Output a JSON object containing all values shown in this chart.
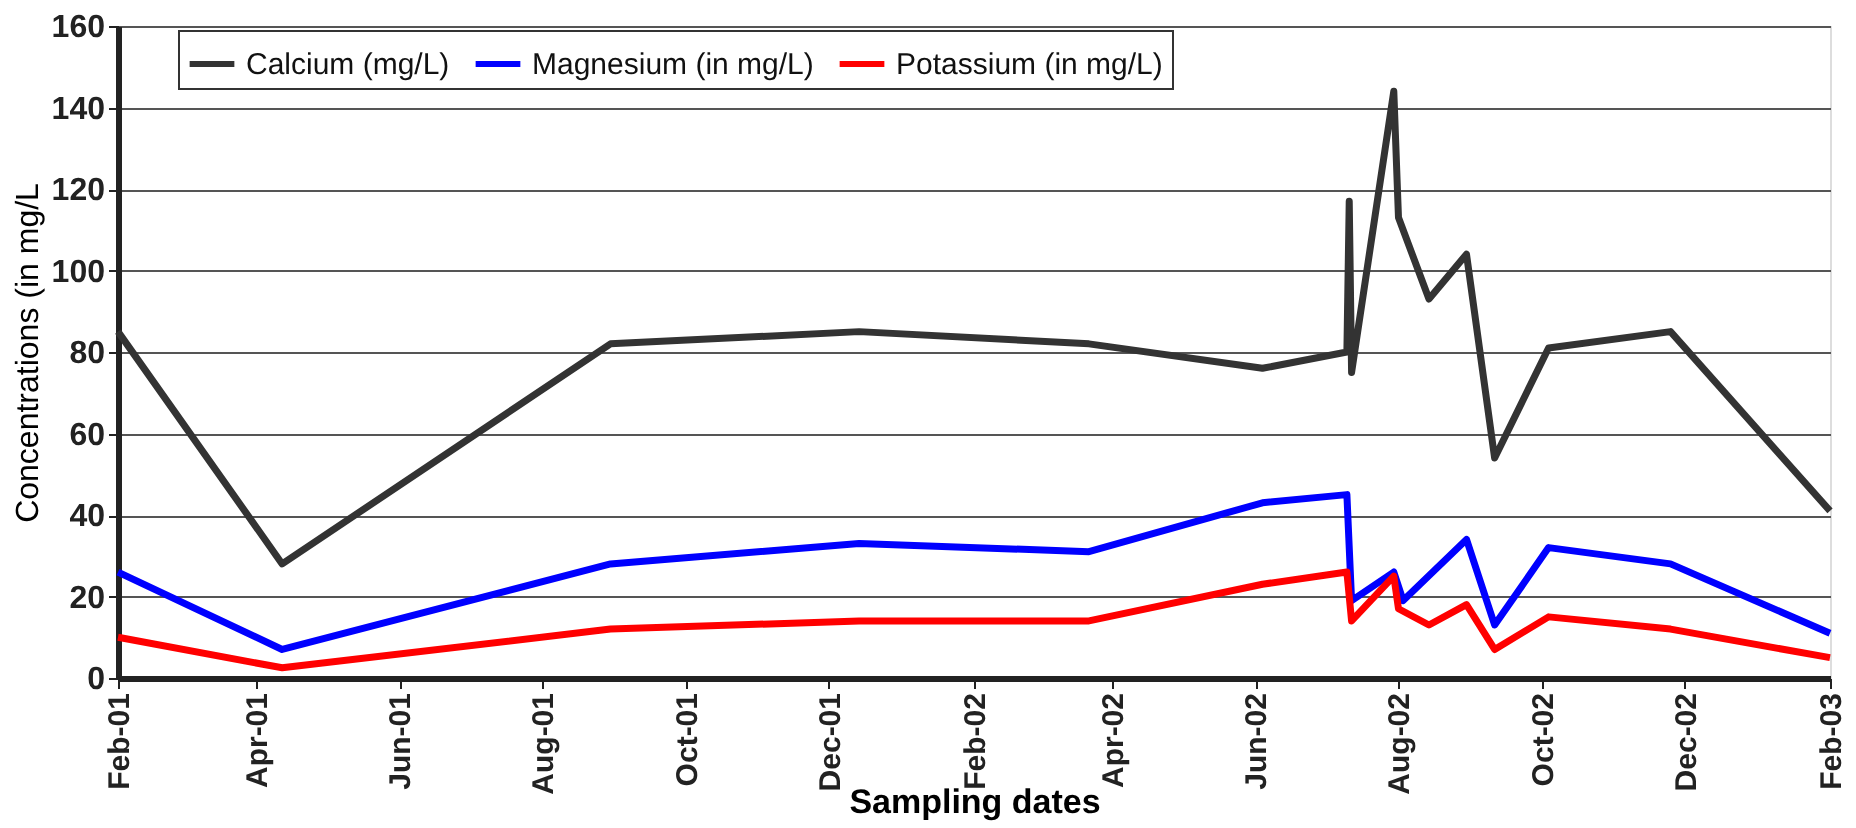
{
  "chart_data": {
    "type": "line",
    "xlabel": "Sampling dates",
    "ylabel": "Concentrations (in mg/L",
    "xlim": [
      "2001-02-01",
      "2003-02-01"
    ],
    "xticks": [
      {
        "value": "2001-02-01",
        "label": "Feb-01"
      },
      {
        "value": "2001-04-01",
        "label": "Apr-01"
      },
      {
        "value": "2001-06-01",
        "label": "Jun-01"
      },
      {
        "value": "2001-08-01",
        "label": "Aug-01"
      },
      {
        "value": "2001-10-01",
        "label": "Oct-01"
      },
      {
        "value": "2001-12-01",
        "label": "Dec-01"
      },
      {
        "value": "2002-02-01",
        "label": "Feb-02"
      },
      {
        "value": "2002-04-01",
        "label": "Apr-02"
      },
      {
        "value": "2002-06-01",
        "label": "Jun-02"
      },
      {
        "value": "2002-08-01",
        "label": "Aug-02"
      },
      {
        "value": "2002-10-01",
        "label": "Oct-02"
      },
      {
        "value": "2002-12-01",
        "label": "Dec-02"
      },
      {
        "value": "2003-02-01",
        "label": "Feb-03"
      }
    ],
    "ylim": [
      0,
      160
    ],
    "yticks": [
      0,
      20,
      40,
      60,
      80,
      100,
      120,
      140,
      160
    ],
    "grid": "y",
    "legend": "top",
    "marker": "none",
    "line_style": "solid",
    "series": [
      {
        "name": "Calcium (mg/L)",
        "color": "#333333",
        "x": [
          "2001-02-01",
          "2001-04-12",
          "2001-08-30",
          "2001-12-14",
          "2002-03-22",
          "2002-06-04",
          "2002-07-10",
          "2002-07-11",
          "2002-07-12",
          "2002-07-30",
          "2002-08-01",
          "2002-08-14",
          "2002-08-30",
          "2002-09-11",
          "2002-10-04",
          "2002-11-25",
          "2003-02-01"
        ],
        "values": [
          85,
          28,
          82,
          85,
          82,
          76,
          80,
          117,
          75,
          144,
          113,
          93,
          104,
          54,
          81,
          85,
          41
        ]
      },
      {
        "name": "Magnesium (in mg/L)",
        "color": "#0000ff",
        "x": [
          "2001-02-01",
          "2001-04-12",
          "2001-08-30",
          "2001-12-14",
          "2002-03-22",
          "2002-06-04",
          "2002-07-10",
          "2002-07-12",
          "2002-07-30",
          "2002-08-03",
          "2002-08-30",
          "2002-09-11",
          "2002-10-04",
          "2002-11-25",
          "2003-02-01"
        ],
        "values": [
          26,
          7,
          28,
          33,
          31,
          43,
          45,
          19,
          26,
          19,
          34,
          13,
          32,
          28,
          11
        ]
      },
      {
        "name": "Potassium (in mg/L)",
        "color": "#ff0000",
        "x": [
          "2001-02-01",
          "2001-04-12",
          "2001-08-30",
          "2001-12-14",
          "2002-03-22",
          "2002-06-04",
          "2002-07-10",
          "2002-07-12",
          "2002-07-30",
          "2002-08-01",
          "2002-08-14",
          "2002-08-30",
          "2002-09-11",
          "2002-10-04",
          "2002-11-25",
          "2003-02-01"
        ],
        "values": [
          10,
          2.5,
          12,
          14,
          14,
          23,
          26,
          14,
          25,
          17,
          13,
          18,
          7,
          15,
          12,
          5
        ]
      }
    ]
  }
}
